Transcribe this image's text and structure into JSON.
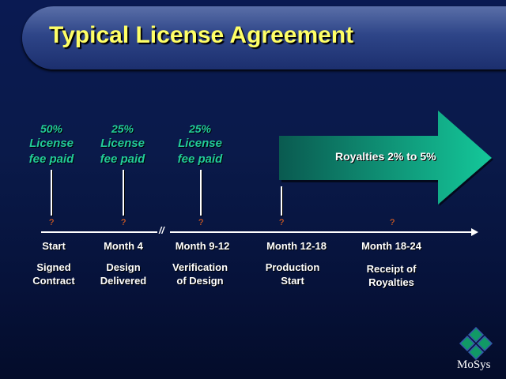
{
  "title": "Typical License Agreement",
  "payments": [
    {
      "percent": "50%",
      "line1": "License",
      "line2": "fee paid"
    },
    {
      "percent": "25%",
      "line1": "License",
      "line2": "fee paid"
    },
    {
      "percent": "25%",
      "line1": "License",
      "line2": "fee paid"
    }
  ],
  "royalties": "Royalties 2% to 5%",
  "marker": "?",
  "axis_break": "//",
  "milestones": [
    {
      "time": "Start",
      "line1": "Signed",
      "line2": "Contract"
    },
    {
      "time": "Month 4",
      "line1": "Design",
      "line2": "Delivered"
    },
    {
      "time": "Month 9-12",
      "line1": "Verification",
      "line2": "of Design"
    },
    {
      "time": "Month 12-18",
      "line1": "Production",
      "line2": "Start"
    },
    {
      "time": "Month 18-24",
      "line1": "Receipt of",
      "line2": "Royalties"
    }
  ],
  "logo": "MoSys",
  "colors": {
    "title": "#ffff66",
    "fee": "#22cc99",
    "marker": "#ff6a1a",
    "arrow": "#0fa880"
  }
}
